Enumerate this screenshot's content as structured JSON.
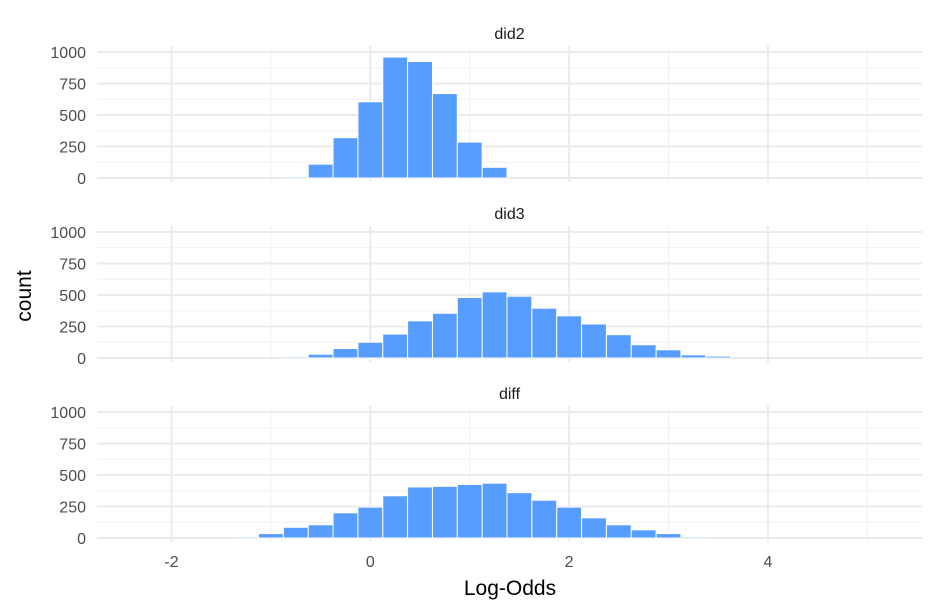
{
  "chart_data": {
    "type": "bar",
    "xlabel": "Log-Odds",
    "ylabel": "count",
    "xlim": [
      -2.75,
      5.55
    ],
    "ylim": [
      0,
      1000
    ],
    "x_ticks": [
      -2,
      0,
      2,
      4
    ],
    "y_ticks": [
      0,
      250,
      500,
      750,
      1000
    ],
    "grid": true,
    "bin_width": 0.25,
    "bar_color": "#569DFF",
    "facets": [
      {
        "label": "did2",
        "bins": [
          {
            "x0": -0.875,
            "count": 10
          },
          {
            "x0": -0.625,
            "count": 110
          },
          {
            "x0": -0.375,
            "count": 320
          },
          {
            "x0": -0.125,
            "count": 605
          },
          {
            "x0": 0.125,
            "count": 960
          },
          {
            "x0": 0.375,
            "count": 925
          },
          {
            "x0": 0.625,
            "count": 670
          },
          {
            "x0": 0.875,
            "count": 285
          },
          {
            "x0": 1.125,
            "count": 85
          }
        ]
      },
      {
        "label": "did3",
        "bins": [
          {
            "x0": -0.875,
            "count": 10
          },
          {
            "x0": -0.625,
            "count": 30
          },
          {
            "x0": -0.375,
            "count": 75
          },
          {
            "x0": -0.125,
            "count": 125
          },
          {
            "x0": 0.125,
            "count": 190
          },
          {
            "x0": 0.375,
            "count": 295
          },
          {
            "x0": 0.625,
            "count": 355
          },
          {
            "x0": 0.875,
            "count": 480
          },
          {
            "x0": 1.125,
            "count": 525
          },
          {
            "x0": 1.375,
            "count": 490
          },
          {
            "x0": 1.625,
            "count": 395
          },
          {
            "x0": 1.875,
            "count": 335
          },
          {
            "x0": 2.125,
            "count": 270
          },
          {
            "x0": 2.375,
            "count": 185
          },
          {
            "x0": 2.625,
            "count": 105
          },
          {
            "x0": 2.875,
            "count": 65
          },
          {
            "x0": 3.125,
            "count": 25
          },
          {
            "x0": 3.375,
            "count": 15
          }
        ]
      },
      {
        "label": "diff",
        "bins": [
          {
            "x0": -1.375,
            "count": 10
          },
          {
            "x0": -1.125,
            "count": 35
          },
          {
            "x0": -0.875,
            "count": 85
          },
          {
            "x0": -0.625,
            "count": 105
          },
          {
            "x0": -0.375,
            "count": 200
          },
          {
            "x0": -0.125,
            "count": 245
          },
          {
            "x0": 0.125,
            "count": 335
          },
          {
            "x0": 0.375,
            "count": 405
          },
          {
            "x0": 0.625,
            "count": 410
          },
          {
            "x0": 0.875,
            "count": 425
          },
          {
            "x0": 1.125,
            "count": 435
          },
          {
            "x0": 1.375,
            "count": 360
          },
          {
            "x0": 1.625,
            "count": 300
          },
          {
            "x0": 1.875,
            "count": 245
          },
          {
            "x0": 2.125,
            "count": 160
          },
          {
            "x0": 2.375,
            "count": 105
          },
          {
            "x0": 2.625,
            "count": 65
          },
          {
            "x0": 2.875,
            "count": 35
          },
          {
            "x0": 3.125,
            "count": 10
          }
        ]
      }
    ]
  }
}
